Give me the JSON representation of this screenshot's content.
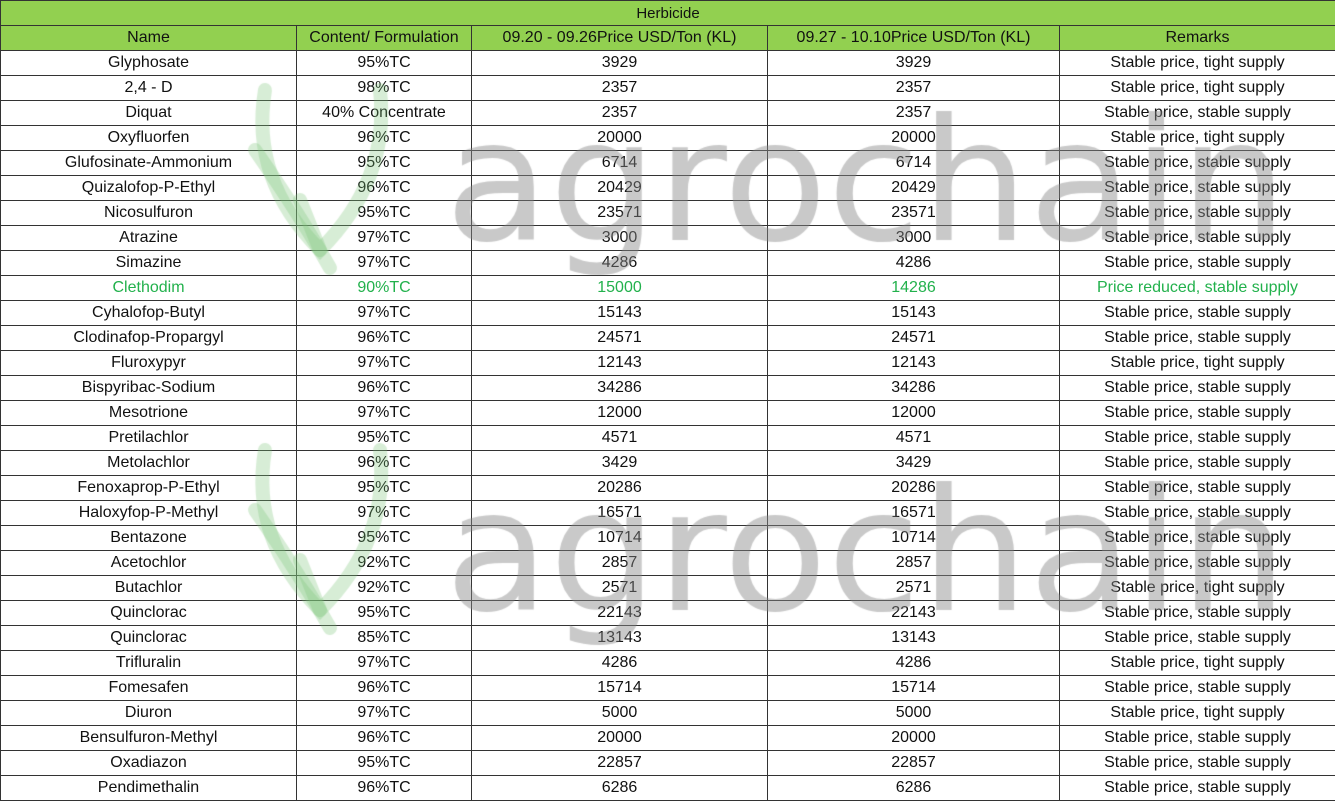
{
  "title": "Herbicide",
  "headers": [
    "Name",
    "Content/ Formulation",
    "09.20 - 09.26Price USD/Ton (KL)",
    "09.27 - 10.10Price USD/Ton (KL)",
    "Remarks"
  ],
  "watermark": "agrochain",
  "highlight_color": "#22b14c",
  "header_color": "#92d050",
  "rows": [
    [
      "Glyphosate",
      "95%TC",
      "3929",
      "3929",
      "Stable price, tight supply"
    ],
    [
      "2,4 - D",
      "98%TC",
      "2357",
      "2357",
      "Stable price, tight supply"
    ],
    [
      "Diquat",
      "40% Concentrate",
      "2357",
      "2357",
      "Stable price, stable supply"
    ],
    [
      "Oxyfluorfen",
      "96%TC",
      "20000",
      "20000",
      "Stable price, tight supply"
    ],
    [
      "Glufosinate-Ammonium",
      "95%TC",
      "6714",
      "6714",
      "Stable price, stable supply"
    ],
    [
      "Quizalofop-P-Ethyl",
      "96%TC",
      "20429",
      "20429",
      "Stable price, stable supply"
    ],
    [
      "Nicosulfuron",
      "95%TC",
      "23571",
      "23571",
      "Stable price, stable supply"
    ],
    [
      "Atrazine",
      "97%TC",
      "3000",
      "3000",
      "Stable price, stable supply"
    ],
    [
      "Simazine",
      "97%TC",
      "4286",
      "4286",
      "Stable price, stable supply"
    ],
    [
      "Clethodim",
      "90%TC",
      "15000",
      "14286",
      "Price reduced, stable supply"
    ],
    [
      "Cyhalofop-Butyl",
      "97%TC",
      "15143",
      "15143",
      "Stable price, stable supply"
    ],
    [
      "Clodinafop-Propargyl",
      "96%TC",
      "24571",
      "24571",
      "Stable price, stable supply"
    ],
    [
      "Fluroxypyr",
      "97%TC",
      "12143",
      "12143",
      "Stable price, tight supply"
    ],
    [
      "Bispyribac-Sodium",
      "96%TC",
      "34286",
      "34286",
      "Stable price, stable supply"
    ],
    [
      "Mesotrione",
      "97%TC",
      "12000",
      "12000",
      "Stable price, stable supply"
    ],
    [
      "Pretilachlor",
      "95%TC",
      "4571",
      "4571",
      "Stable price, stable supply"
    ],
    [
      "Metolachlor",
      "96%TC",
      "3429",
      "3429",
      "Stable price, stable supply"
    ],
    [
      "Fenoxaprop-P-Ethyl",
      "95%TC",
      "20286",
      "20286",
      "Stable price, stable supply"
    ],
    [
      "Haloxyfop-P-Methyl",
      "97%TC",
      "16571",
      "16571",
      "Stable price, stable supply"
    ],
    [
      "Bentazone",
      "95%TC",
      "10714",
      "10714",
      "Stable price, stable supply"
    ],
    [
      "Acetochlor",
      "92%TC",
      "2857",
      "2857",
      "Stable price, stable supply"
    ],
    [
      "Butachlor",
      "92%TC",
      "2571",
      "2571",
      "Stable price, tight supply"
    ],
    [
      "Quinclorac",
      "95%TC",
      "22143",
      "22143",
      "Stable price, stable supply"
    ],
    [
      "Quinclorac",
      "85%TC",
      "13143",
      "13143",
      "Stable price, stable supply"
    ],
    [
      "Trifluralin",
      "97%TC",
      "4286",
      "4286",
      "Stable price, tight supply"
    ],
    [
      "Fomesafen",
      "96%TC",
      "15714",
      "15714",
      "Stable price, stable supply"
    ],
    [
      "Diuron",
      "97%TC",
      "5000",
      "5000",
      "Stable price, tight supply"
    ],
    [
      "Bensulfuron-Methyl",
      "96%TC",
      "20000",
      "20000",
      "Stable price, stable supply"
    ],
    [
      "Oxadiazon",
      "95%TC",
      "22857",
      "22857",
      "Stable price, stable supply"
    ],
    [
      "Pendimethalin",
      "96%TC",
      "6286",
      "6286",
      "Stable price, stable supply"
    ]
  ],
  "highlight_row": 9
}
